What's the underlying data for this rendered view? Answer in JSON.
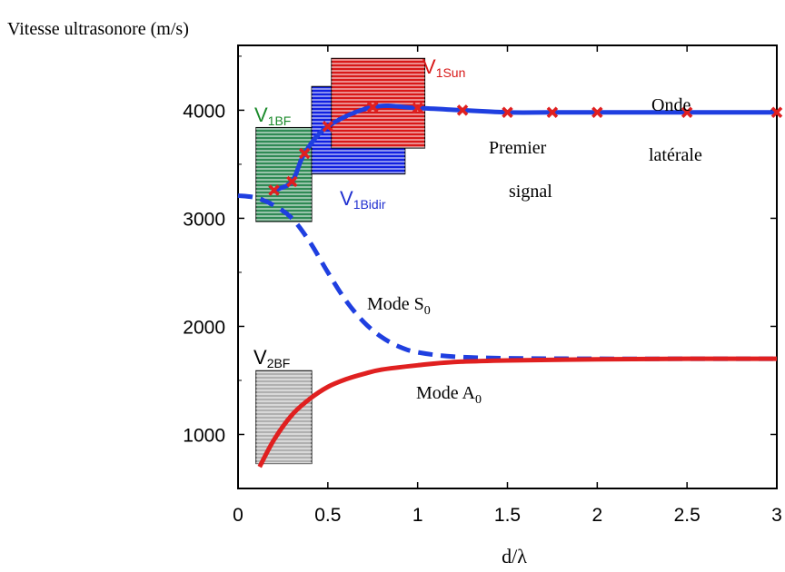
{
  "chart_data": {
    "type": "line",
    "ylabel": "Vitesse ultrasonore (m/s)",
    "xlabel": "d/λ",
    "xlim": [
      0,
      3
    ],
    "ylim": [
      500,
      4600
    ],
    "xticks": [
      0,
      0.5,
      1,
      1.5,
      2,
      2.5,
      3
    ],
    "xtick_labels": [
      "0",
      "0.5",
      "1",
      "1.5",
      "2",
      "2.5",
      "3"
    ],
    "yticks": [
      1000,
      2000,
      3000,
      4000
    ],
    "ytick_labels": [
      "1000",
      "2000",
      "3000",
      "4000"
    ],
    "grid": false,
    "series": [
      {
        "name": "Mode S0",
        "style": "dashed",
        "color": "#1f3fe0",
        "x": [
          0,
          0.1,
          0.2,
          0.3,
          0.4,
          0.5,
          0.6,
          0.7,
          0.8,
          0.9,
          1.0,
          1.2,
          1.5,
          2.0,
          2.5,
          3.0
        ],
        "y": [
          3210,
          3190,
          3120,
          3000,
          2780,
          2500,
          2240,
          2040,
          1900,
          1810,
          1760,
          1720,
          1705,
          1700,
          1700,
          1700
        ]
      },
      {
        "name": "Mode A0",
        "style": "solid",
        "color": "#e02020",
        "x": [
          0.12,
          0.2,
          0.3,
          0.4,
          0.5,
          0.6,
          0.7,
          0.8,
          1.0,
          1.2,
          1.5,
          2.0,
          2.5,
          3.0
        ],
        "y": [
          700,
          950,
          1180,
          1330,
          1440,
          1510,
          1560,
          1600,
          1640,
          1670,
          1685,
          1695,
          1700,
          1700
        ]
      },
      {
        "name": "Premier signal",
        "style": "solid-markers",
        "color": "#1f3fe0",
        "marker_color": "#e02020",
        "x": [
          0.2,
          0.3,
          0.37,
          0.5,
          0.75,
          1.0,
          1.25,
          1.5,
          1.75,
          2.0,
          2.5,
          3.0
        ],
        "y": [
          3260,
          3340,
          3600,
          3850,
          4030,
          4020,
          4000,
          3980,
          3980,
          3980,
          3980,
          3980
        ]
      }
    ],
    "boxes": [
      {
        "label_main": "V",
        "label_sub": "1BF",
        "x": [
          0.1,
          0.41
        ],
        "y": [
          2970,
          3840
        ],
        "fill": "#2f8a55",
        "label_color": "#1a8a2a"
      },
      {
        "label_main": "V",
        "label_sub": "1Bidir",
        "x": [
          0.41,
          0.93
        ],
        "y": [
          3410,
          4220
        ],
        "fill": "#1020e0",
        "label_color": "#2030d0"
      },
      {
        "label_main": "V",
        "label_sub": "1Sun",
        "x": [
          0.52,
          1.04
        ],
        "y": [
          3650,
          4480
        ],
        "fill": "#d81818",
        "label_color": "#d81818"
      },
      {
        "label_main": "V",
        "label_sub": "2BF",
        "x": [
          0.1,
          0.41
        ],
        "y": [
          730,
          1590
        ],
        "fill": "#b0b0b0",
        "label_color": "#000000"
      }
    ],
    "annotations": {
      "mode_s0_main": "Mode S",
      "mode_s0_sub": "0",
      "mode_a0_main": "Mode A",
      "mode_a0_sub": "0",
      "premier": "Premier",
      "signal": "signal",
      "onde": "Onde",
      "laterale": "latérale"
    }
  }
}
